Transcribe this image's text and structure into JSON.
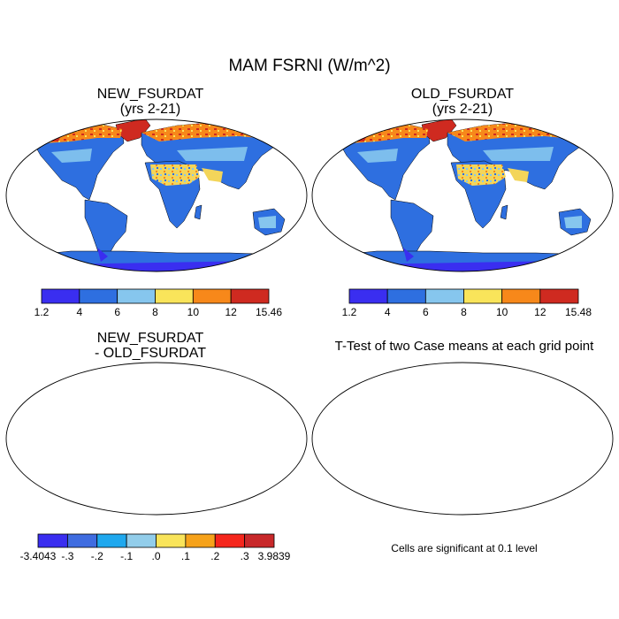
{
  "title": "MAM FSRNI (W/m^2)",
  "panels": [
    {
      "title_line1": "NEW_FSURDAT",
      "title_line2": "(yrs 2-21)"
    },
    {
      "title_line1": "OLD_FSURDAT",
      "title_line2": "(yrs 2-21)"
    },
    {
      "title_line1": "NEW_FSURDAT",
      "title_line2": "- OLD_FSURDAT"
    },
    {
      "title_line1": "T-Test of two Case means at each grid point",
      "title_line2": ""
    }
  ],
  "colorbars": [
    {
      "labels": [
        "1.2",
        "4",
        "6",
        "8",
        "10",
        "12",
        "15.46"
      ],
      "colors": [
        "#3a2ef0",
        "#2e6fe0",
        "#86c6ee",
        "#f9e45a",
        "#f7881a",
        "#cf2a20"
      ]
    },
    {
      "labels": [
        "1.2",
        "4",
        "6",
        "8",
        "10",
        "12",
        "15.48"
      ],
      "colors": [
        "#3a2ef0",
        "#2e6fe0",
        "#86c6ee",
        "#f9e45a",
        "#f7881a",
        "#cf2a20"
      ]
    },
    {
      "labels": [
        "-3.4043",
        "-.3",
        "-.2",
        "-.1",
        ".0",
        ".1",
        ".2",
        ".3",
        "3.9839"
      ],
      "colors": [
        "#3a2ef0",
        "#3f6ce0",
        "#1fa8ee",
        "#92cdea",
        "#f9e45a",
        "#f6a21a",
        "#f5261c",
        "#c8282a"
      ]
    }
  ],
  "significance_note": "Cells are significant at 0.1 level",
  "ttest_color": "#e8000a"
}
